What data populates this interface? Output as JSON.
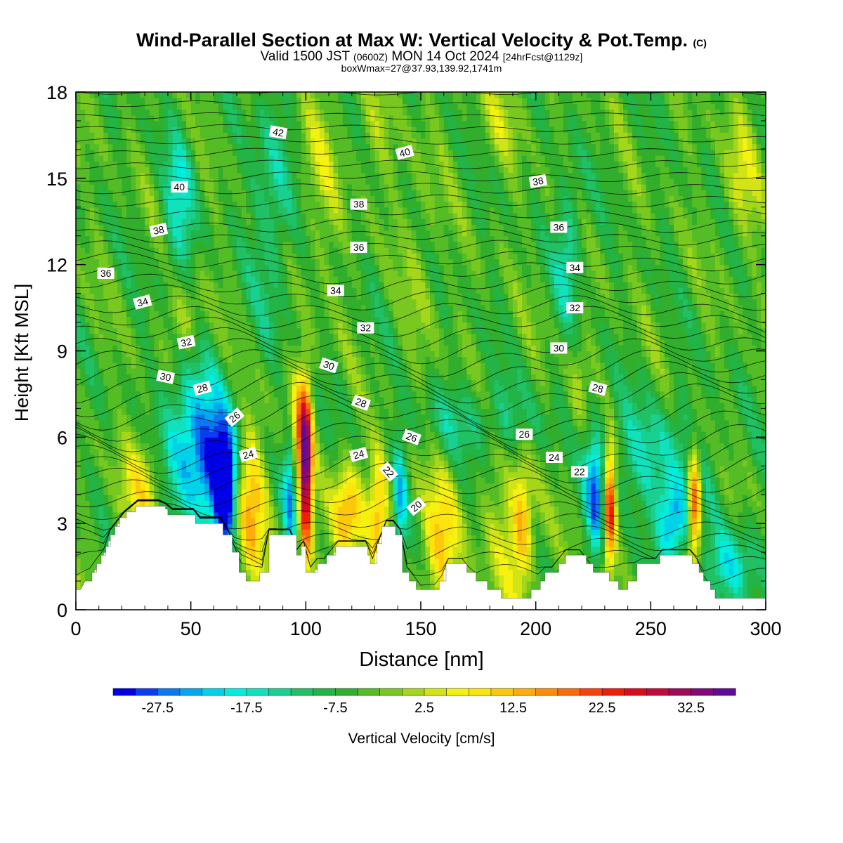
{
  "title": {
    "main": "Wind-Parallel Section at Max W: Vertical Velocity & Pot.Temp.",
    "copyright_mark": "(C)",
    "valid_prefix": "Valid 1500 JST",
    "valid_utc": "(0600Z)",
    "valid_date": "MON 14 Oct 2024",
    "forecast": "[24hrFcst@1129z]",
    "box_info": "boxWmax=27@37.93,139.92,1741m"
  },
  "chart_data": {
    "type": "heatmap",
    "xlabel": "Distance [nm]",
    "ylabel": "Height [Kft MSL]",
    "xlim": [
      0,
      300
    ],
    "ylim": [
      0,
      18
    ],
    "x_ticks": [
      0,
      50,
      100,
      150,
      200,
      250,
      300
    ],
    "y_ticks": [
      0,
      3,
      6,
      9,
      12,
      15,
      18
    ],
    "colorbar": {
      "label": "Vertical Velocity [cm/s]",
      "tick_labels": [
        "-27.5",
        "-17.5",
        "-7.5",
        "2.5",
        "12.5",
        "22.5",
        "32.5"
      ],
      "tick_values": [
        -27.5,
        -17.5,
        -7.5,
        2.5,
        12.5,
        22.5,
        32.5
      ],
      "min": -32.5,
      "max": 37.5,
      "step": 2.5,
      "colors": [
        "#0000e6",
        "#0a3cf0",
        "#0a78f0",
        "#00a8f0",
        "#00d2ea",
        "#00eee0",
        "#10e2be",
        "#18d090",
        "#20c064",
        "#22b446",
        "#30ae2c",
        "#54bc24",
        "#78c820",
        "#a4d61a",
        "#d2e414",
        "#f4f20e",
        "#fce40c",
        "#fcc80c",
        "#fcac0c",
        "#fc8c0a",
        "#fc6a0a",
        "#f8420a",
        "#ee1e0a",
        "#dc0a1e",
        "#c00a3c",
        "#a0085a",
        "#80087a",
        "#600a96"
      ]
    },
    "background_level": -5,
    "terrain_profile": [
      [
        0,
        0.7
      ],
      [
        2,
        0.7
      ],
      [
        4,
        1
      ],
      [
        7,
        1
      ],
      [
        7,
        1.3
      ],
      [
        9,
        1.3
      ],
      [
        9,
        1.6
      ],
      [
        11,
        1.6
      ],
      [
        11,
        1.9
      ],
      [
        13,
        1.9
      ],
      [
        13,
        2.2
      ],
      [
        15,
        2.2
      ],
      [
        15,
        2.6
      ],
      [
        17,
        2.6
      ],
      [
        17,
        2.9
      ],
      [
        19,
        2.9
      ],
      [
        19,
        3.2
      ],
      [
        22,
        3.2
      ],
      [
        22,
        3.4
      ],
      [
        26,
        3.4
      ],
      [
        26,
        3.6
      ],
      [
        39,
        3.6
      ],
      [
        39,
        3.5
      ],
      [
        40,
        3.5
      ],
      [
        40,
        3.3
      ],
      [
        52,
        3.3
      ],
      [
        52,
        3.0
      ],
      [
        64,
        3.0
      ],
      [
        64,
        2.6
      ],
      [
        68,
        2.6
      ],
      [
        68,
        2.0
      ],
      [
        71,
        2.0
      ],
      [
        71,
        1.3
      ],
      [
        74,
        1.3
      ],
      [
        74,
        1.0
      ],
      [
        80,
        1.0
      ],
      [
        80,
        1.3
      ],
      [
        84,
        1.3
      ],
      [
        84,
        2.6
      ],
      [
        96,
        2.6
      ],
      [
        96,
        1.9
      ],
      [
        98,
        1.9
      ],
      [
        98,
        2.2
      ],
      [
        100,
        2.2
      ],
      [
        100,
        1.3
      ],
      [
        105,
        1.3
      ],
      [
        105,
        1.6
      ],
      [
        109,
        1.6
      ],
      [
        109,
        1.9
      ],
      [
        113,
        1.9
      ],
      [
        113,
        2.2
      ],
      [
        127,
        2.2
      ],
      [
        127,
        1.9
      ],
      [
        128,
        1.9
      ],
      [
        128,
        1.6
      ],
      [
        131,
        1.6
      ],
      [
        131,
        2.3
      ],
      [
        133,
        2.3
      ],
      [
        133,
        2.9
      ],
      [
        139,
        2.9
      ],
      [
        139,
        2.6
      ],
      [
        142,
        2.6
      ],
      [
        142,
        1.3
      ],
      [
        145,
        1.3
      ],
      [
        145,
        1.0
      ],
      [
        148,
        1.0
      ],
      [
        148,
        0.7
      ],
      [
        158,
        0.7
      ],
      [
        158,
        1.0
      ],
      [
        161,
        1.0
      ],
      [
        161,
        1.6
      ],
      [
        170,
        1.6
      ],
      [
        170,
        1.3
      ],
      [
        174,
        1.3
      ],
      [
        174,
        1.0
      ],
      [
        179,
        1.0
      ],
      [
        179,
        0.7
      ],
      [
        185,
        0.7
      ],
      [
        185,
        0.4
      ],
      [
        198,
        0.4
      ],
      [
        198,
        0.7
      ],
      [
        202,
        0.7
      ],
      [
        202,
        1.0
      ],
      [
        204,
        1.0
      ],
      [
        204,
        1.3
      ],
      [
        210,
        1.3
      ],
      [
        210,
        1.6
      ],
      [
        213,
        1.6
      ],
      [
        213,
        1.9
      ],
      [
        222,
        1.9
      ],
      [
        222,
        1.6
      ],
      [
        225,
        1.6
      ],
      [
        225,
        1.3
      ],
      [
        232,
        1.3
      ],
      [
        232,
        1.0
      ],
      [
        236,
        1.0
      ],
      [
        236,
        0.7
      ],
      [
        240,
        0.7
      ],
      [
        240,
        1.0
      ],
      [
        244,
        1.0
      ],
      [
        244,
        1.6
      ],
      [
        254,
        1.6
      ],
      [
        254,
        1.9
      ],
      [
        268,
        1.9
      ],
      [
        268,
        1.6
      ],
      [
        271,
        1.6
      ],
      [
        271,
        1.3
      ],
      [
        273,
        1.3
      ],
      [
        273,
        1.0
      ],
      [
        276,
        1.0
      ],
      [
        276,
        0.7
      ],
      [
        278,
        0.7
      ],
      [
        278,
        0.4
      ],
      [
        300,
        0.4
      ]
    ],
    "w_features": [
      {
        "x": 65,
        "z": 4.2,
        "sx": 3,
        "sz": 1.3,
        "w": -30
      },
      {
        "x": 60,
        "z": 5.2,
        "sx": 7,
        "sz": 1.8,
        "w": -20
      },
      {
        "x": 47,
        "z": 5.8,
        "sx": 8,
        "sz": 1.7,
        "w": -16
      },
      {
        "x": 76,
        "z": 3.6,
        "sx": 5,
        "sz": 2.0,
        "w": 17
      },
      {
        "x": 30,
        "z": 4.4,
        "sx": 7,
        "sz": 1.3,
        "w": 12
      },
      {
        "x": 100,
        "z": 4.5,
        "sx": 2,
        "sz": 2.2,
        "w": 37
      },
      {
        "x": 97,
        "z": 6.3,
        "sx": 3,
        "sz": 1.4,
        "w": 15
      },
      {
        "x": 93,
        "z": 4.2,
        "sx": 2,
        "sz": 1.4,
        "w": -19
      },
      {
        "x": 118,
        "z": 3.3,
        "sx": 5,
        "sz": 1.2,
        "w": 19
      },
      {
        "x": 132,
        "z": 3.5,
        "sx": 3,
        "sz": 1.6,
        "w": 16
      },
      {
        "x": 141,
        "z": 4.0,
        "sx": 2,
        "sz": 1.4,
        "w": -15
      },
      {
        "x": 159,
        "z": 2.4,
        "sx": 6,
        "sz": 1.6,
        "w": 15
      },
      {
        "x": 189,
        "z": 2.6,
        "sx": 8,
        "sz": 1.6,
        "w": 8
      },
      {
        "x": 194,
        "z": 3.0,
        "sx": 3,
        "sz": 1.6,
        "w": 13
      },
      {
        "x": 232,
        "z": 3.6,
        "sx": 2,
        "sz": 1.5,
        "w": 34
      },
      {
        "x": 226,
        "z": 4.0,
        "sx": 3,
        "sz": 1.5,
        "w": -19
      },
      {
        "x": 260,
        "z": 3.0,
        "sx": 5,
        "sz": 1.0,
        "w": -20
      },
      {
        "x": 269,
        "z": 3.8,
        "sx": 2,
        "sz": 1.4,
        "w": 30
      },
      {
        "x": 47,
        "z": 10.2,
        "sx": 5,
        "sz": 1.0,
        "w": 8
      },
      {
        "x": 218,
        "z": 7.4,
        "sx": 3,
        "sz": 1.5,
        "w": 6
      },
      {
        "x": 290,
        "z": 15.2,
        "sx": 6,
        "sz": 1.8,
        "w": 7
      },
      {
        "x": 185,
        "z": 17.0,
        "sx": 8,
        "sz": 1.0,
        "w": 5
      },
      {
        "x": 106,
        "z": 15.5,
        "sx": 6,
        "sz": 2.5,
        "w": 6
      },
      {
        "x": 130,
        "z": 16.5,
        "sx": 6,
        "sz": 1.4,
        "w": 4
      },
      {
        "x": 150,
        "z": 12.5,
        "sx": 5,
        "sz": 3.0,
        "w": 4
      },
      {
        "x": 45,
        "z": 14.0,
        "sx": 5,
        "sz": 2.0,
        "w": -11
      },
      {
        "x": 214,
        "z": 12.5,
        "sx": 4,
        "sz": 1.8,
        "w": -11
      },
      {
        "x": 85,
        "z": 14.0,
        "sx": 6,
        "sz": 3.0,
        "w": -9
      },
      {
        "x": 250,
        "z": 5.3,
        "sx": 18,
        "sz": 1.4,
        "w": -9
      },
      {
        "x": 175,
        "z": 6.6,
        "sx": 20,
        "sz": 0.9,
        "w": -7
      },
      {
        "x": 285,
        "z": 1.5,
        "sx": 8,
        "sz": 1.0,
        "w": -12
      }
    ],
    "theta_labels": [
      {
        "text": "42",
        "x": 88,
        "z": 16.6,
        "angle": 10
      },
      {
        "text": "40",
        "x": 143,
        "z": 15.9,
        "angle": -15
      },
      {
        "text": "40",
        "x": 45,
        "z": 14.7,
        "angle": 0
      },
      {
        "text": "38",
        "x": 201,
        "z": 14.9,
        "angle": -10
      },
      {
        "text": "38",
        "x": 123,
        "z": 14.1,
        "angle": 0
      },
      {
        "text": "38",
        "x": 36,
        "z": 13.2,
        "angle": -12
      },
      {
        "text": "36",
        "x": 210,
        "z": 13.3,
        "angle": 0
      },
      {
        "text": "36",
        "x": 123,
        "z": 12.6,
        "angle": 0
      },
      {
        "text": "36",
        "x": 13,
        "z": 11.7,
        "angle": 0
      },
      {
        "text": "34",
        "x": 217,
        "z": 11.9,
        "angle": 0
      },
      {
        "text": "34",
        "x": 113,
        "z": 11.1,
        "angle": 0
      },
      {
        "text": "34",
        "x": 29,
        "z": 10.7,
        "angle": -15
      },
      {
        "text": "32",
        "x": 217,
        "z": 10.5,
        "angle": 0
      },
      {
        "text": "32",
        "x": 126,
        "z": 9.8,
        "angle": 0
      },
      {
        "text": "32",
        "x": 48,
        "z": 9.3,
        "angle": -12
      },
      {
        "text": "30",
        "x": 210,
        "z": 9.1,
        "angle": 0
      },
      {
        "text": "30",
        "x": 110,
        "z": 8.5,
        "angle": 18
      },
      {
        "text": "30",
        "x": 39,
        "z": 8.1,
        "angle": 12
      },
      {
        "text": "28",
        "x": 227,
        "z": 7.7,
        "angle": 15
      },
      {
        "text": "28",
        "x": 124,
        "z": 7.2,
        "angle": 20
      },
      {
        "text": "28",
        "x": 55,
        "z": 7.7,
        "angle": -15
      },
      {
        "text": "26",
        "x": 195,
        "z": 6.1,
        "angle": 0
      },
      {
        "text": "26",
        "x": 146,
        "z": 6.0,
        "angle": 20
      },
      {
        "text": "26",
        "x": 69,
        "z": 6.7,
        "angle": -40
      },
      {
        "text": "24",
        "x": 208,
        "z": 5.3,
        "angle": 0
      },
      {
        "text": "24",
        "x": 123,
        "z": 5.4,
        "angle": -15
      },
      {
        "text": "24",
        "x": 75,
        "z": 5.4,
        "angle": -15
      },
      {
        "text": "22",
        "x": 219,
        "z": 4.8,
        "angle": 0
      },
      {
        "text": "22",
        "x": 136,
        "z": 4.8,
        "angle": 50
      },
      {
        "text": "20",
        "x": 148,
        "z": 3.6,
        "angle": -40
      }
    ]
  }
}
